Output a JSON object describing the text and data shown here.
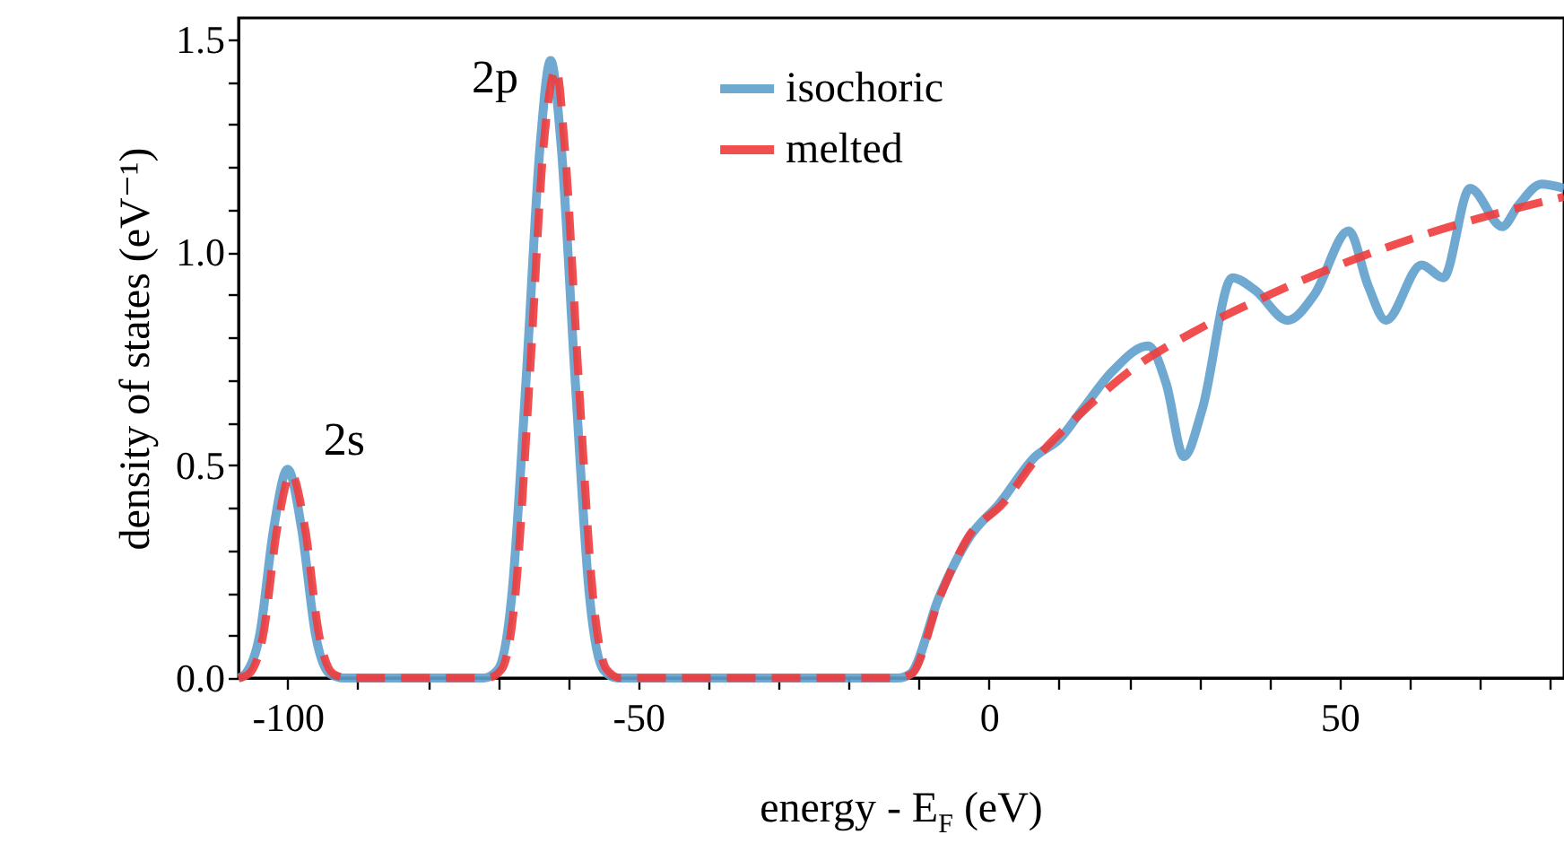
{
  "chart_data": {
    "type": "line",
    "xlabel": "energy - E$_{F}$ (eV)",
    "ylabel": "density of states (eV⁻¹)",
    "xlim": [
      -107,
      82
    ],
    "ylim": [
      0,
      1.55
    ],
    "xticks": [
      -100,
      {
        "value": -90,
        "label": null
      },
      {
        "value": -80,
        "label": null
      },
      {
        "value": -70,
        "label": null
      },
      {
        "value": -60,
        "label": null
      },
      -50,
      {
        "value": -40,
        "label": null
      },
      {
        "value": -30,
        "label": null
      },
      {
        "value": -20,
        "label": null
      },
      {
        "value": -10,
        "label": null
      },
      0,
      {
        "value": 10,
        "label": null
      },
      {
        "value": 20,
        "label": null
      },
      {
        "value": 30,
        "label": null
      },
      {
        "value": 40,
        "label": null
      },
      50,
      {
        "value": 60,
        "label": null
      },
      {
        "value": 70,
        "label": null
      },
      {
        "value": 80,
        "label": null
      }
    ],
    "yticks": [
      {
        "value": 0,
        "label": "0.0"
      },
      {
        "value": 0.1,
        "label": null
      },
      {
        "value": 0.2,
        "label": null
      },
      {
        "value": 0.3,
        "label": null
      },
      {
        "value": 0.4,
        "label": null
      },
      0.5,
      {
        "value": 0.6,
        "label": null
      },
      {
        "value": 0.7,
        "label": null
      },
      {
        "value": 0.8,
        "label": null
      },
      {
        "value": 0.9,
        "label": null
      },
      {
        "value": 1,
        "label": "1.0"
      },
      {
        "value": 1.1,
        "label": null
      },
      {
        "value": 1.2,
        "label": null
      },
      {
        "value": 1.3,
        "label": null
      },
      {
        "value": 1.4,
        "label": null
      },
      1.5
    ],
    "legend": "top",
    "grid": false,
    "annotations": [
      {
        "text": "2s",
        "x": -100,
        "y": 0.49
      },
      {
        "text": "2p",
        "x": -62.5,
        "y": 1.45
      }
    ],
    "series": [
      {
        "name": "isochoric",
        "color": "#5fa0cc",
        "line_style": "solid",
        "x": [
          -107,
          -106,
          -104,
          -102,
          -100,
          -98,
          -96,
          -94,
          -92,
          -72,
          -70,
          -68,
          -66,
          -64,
          -62.5,
          -61,
          -59,
          -57,
          -55,
          -53,
          -13,
          -11.2,
          -7.1,
          -2.8,
          1.5,
          6.6,
          10,
          13.3,
          17.6,
          22.7,
          25.3,
          27.8,
          30.4,
          34.7,
          38,
          42.6,
          46.4,
          51.3,
          54.1,
          56.6,
          61.7,
          64.8,
          68.6,
          73.2,
          75.5,
          78.8,
          82
        ],
        "values": [
          0,
          0.01,
          0.1,
          0.35,
          0.49,
          0.35,
          0.1,
          0.01,
          0,
          0,
          0.02,
          0.2,
          0.7,
          1.25,
          1.45,
          1.25,
          0.7,
          0.2,
          0.02,
          0,
          0,
          0.01,
          0.19,
          0.33,
          0.41,
          0.52,
          0.56,
          0.63,
          0.72,
          0.78,
          0.69,
          0.52,
          0.63,
          0.94,
          0.91,
          0.84,
          0.9,
          1.05,
          0.92,
          0.84,
          0.97,
          0.94,
          1.15,
          1.06,
          1.11,
          1.16,
          1.15
        ]
      },
      {
        "name": "melted",
        "color": "#f03c3c",
        "line_style": "dashed",
        "x": [
          -107,
          -105.5,
          -103.5,
          -101.5,
          -99.5,
          -97.5,
          -95.5,
          -93.5,
          -91.5,
          -71.5,
          -69.5,
          -67.5,
          -65.5,
          -63.5,
          -61.7,
          -60.5,
          -58.5,
          -56.5,
          -54.5,
          -52.5,
          -13,
          -11,
          -7,
          -3,
          2,
          7,
          13,
          20,
          30,
          40,
          50,
          60,
          70,
          82
        ],
        "values": [
          0,
          0.01,
          0.1,
          0.35,
          0.48,
          0.35,
          0.1,
          0.01,
          0,
          0,
          0.02,
          0.2,
          0.7,
          1.25,
          1.43,
          1.25,
          0.7,
          0.2,
          0.02,
          0,
          0,
          0.01,
          0.19,
          0.33,
          0.41,
          0.52,
          0.62,
          0.72,
          0.82,
          0.9,
          0.97,
          1.03,
          1.08,
          1.13
        ]
      }
    ]
  }
}
